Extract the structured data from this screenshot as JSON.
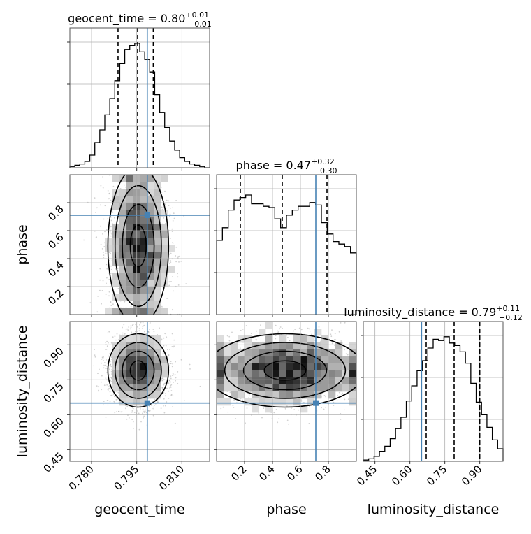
{
  "chart_data": {
    "type": "corner-plot",
    "parameters": [
      "geocent_time",
      "phase",
      "luminosity_distance"
    ],
    "truths": {
      "geocent_time": 0.7985,
      "phase": 0.71,
      "luminosity_distance": 0.65
    },
    "titles": [
      {
        "param": "geocent_time",
        "text": "geocent_time = 0.80",
        "sup": "+0.01",
        "sub": "−0.01"
      },
      {
        "param": "phase",
        "text": "phase = 0.47",
        "sup": "+0.32",
        "sub": "−0.30"
      },
      {
        "param": "luminosity_distance",
        "text": "luminosity_distance = 0.79",
        "sup": "+0.11",
        "sub": "−0.12"
      }
    ],
    "axis_labels": {
      "x": [
        "geocent_time",
        "phase",
        "luminosity_distance"
      ],
      "y": [
        "phase",
        "luminosity_distance"
      ]
    },
    "ranges": {
      "geocent_time": [
        0.7728,
        0.8192
      ],
      "phase": [
        0.0,
        1.0
      ],
      "luminosity_distance": [
        0.4,
        1.0
      ]
    },
    "ticks": {
      "geocent_time": {
        "values": [
          0.78,
          0.795,
          0.81
        ],
        "labels": [
          "0.780",
          "0.795",
          "0.810"
        ]
      },
      "phase": {
        "values": [
          0.2,
          0.4,
          0.6,
          0.8
        ],
        "labels": [
          "0.2",
          "0.4",
          "0.6",
          "0.8"
        ]
      },
      "luminosity_distance": {
        "values": [
          0.45,
          0.6,
          0.75,
          0.9
        ],
        "labels": [
          "0.45",
          "0.60",
          "0.75",
          "0.90"
        ]
      }
    },
    "quantiles": {
      "geocent_time": [
        0.7888,
        0.7953,
        0.8005
      ],
      "phase": [
        0.17,
        0.47,
        0.79
      ],
      "luminosity_distance": [
        0.67,
        0.79,
        0.9
      ]
    },
    "histograms": {
      "geocent_time": [
        0.01,
        0.02,
        0.03,
        0.05,
        0.1,
        0.2,
        0.3,
        0.42,
        0.55,
        0.69,
        0.83,
        0.94,
        0.97,
        0.99,
        0.92,
        0.86,
        0.76,
        0.58,
        0.44,
        0.32,
        0.21,
        0.14,
        0.08,
        0.05,
        0.03,
        0.02,
        0.01,
        0.0
      ],
      "phase": [
        0.59,
        0.69,
        0.83,
        0.91,
        0.93,
        0.95,
        0.88,
        0.88,
        0.86,
        0.85,
        0.76,
        0.69,
        0.79,
        0.83,
        0.86,
        0.86,
        0.89,
        0.87,
        0.73,
        0.64,
        0.58,
        0.56,
        0.54,
        0.49
      ],
      "luminosity_distance": [
        0.01,
        0.02,
        0.04,
        0.08,
        0.12,
        0.18,
        0.26,
        0.35,
        0.48,
        0.6,
        0.72,
        0.8,
        0.9,
        0.97,
        0.96,
        0.99,
        0.94,
        0.92,
        0.87,
        0.78,
        0.62,
        0.47,
        0.37,
        0.27,
        0.17,
        0.1
      ]
    },
    "histogram_peaks": {
      "geocent_time": 1.0,
      "phase": 1.0,
      "luminosity_distance": 1.0
    },
    "grid": true,
    "colors": {
      "truth": "#4682b4",
      "ink": "#000000",
      "grid": "#b0b0b0",
      "scatter": "#9a9a9a"
    }
  }
}
